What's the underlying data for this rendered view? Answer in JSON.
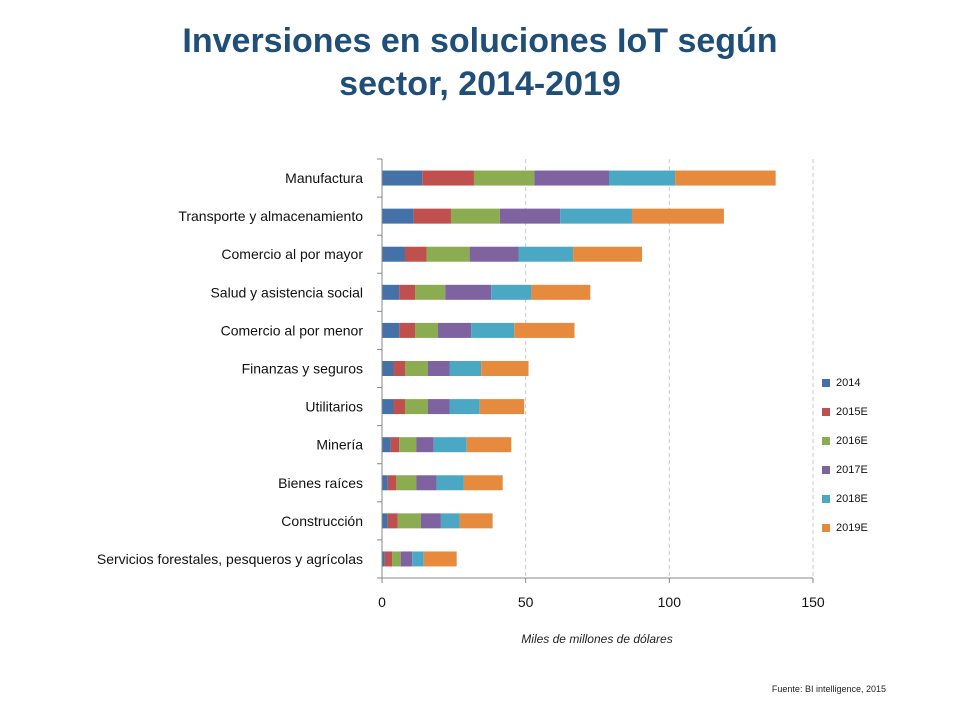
{
  "title_lines": [
    "Inversiones en soluciones IoT según",
    "sector, 2014-2019"
  ],
  "source": "Fuente: BI intelligence, 2015",
  "chart_data": {
    "type": "bar",
    "orientation": "horizontal",
    "stacked": true,
    "xlabel": "Miles de millones de dólares",
    "ylabel": "",
    "xlim": [
      0,
      150
    ],
    "xticks": [
      0,
      50,
      100,
      150
    ],
    "grid": "vertical-dashed",
    "legend_position": "right",
    "categories": [
      "Manufactura",
      "Transporte y almacenamiento",
      "Comercio al por mayor",
      "Salud y asistencia social",
      "Comercio al por menor",
      "Finanzas y seguros",
      "Utilitarios",
      "Minería",
      "Bienes raíces",
      "Construcción",
      "Servicios forestales, pesqueros y agrícolas"
    ],
    "series": [
      {
        "name": "2014",
        "color": "#4472a8",
        "values": [
          14,
          11,
          8,
          6,
          6,
          4,
          4,
          3,
          2,
          2,
          1
        ]
      },
      {
        "name": "2015E",
        "color": "#c0504d",
        "values": [
          18,
          13,
          7.5,
          5.5,
          5.5,
          4,
          4,
          3,
          3,
          3.5,
          2.5
        ]
      },
      {
        "name": "2016E",
        "color": "#8cac52",
        "values": [
          21,
          17,
          15,
          10.5,
          8,
          8,
          8,
          6,
          7,
          8,
          3
        ]
      },
      {
        "name": "2017E",
        "color": "#7f62a0",
        "values": [
          26,
          21,
          17,
          16,
          11.5,
          7.5,
          7.5,
          6,
          7,
          7,
          4
        ]
      },
      {
        "name": "2018E",
        "color": "#4ba8c5",
        "values": [
          23,
          25,
          19,
          14,
          15,
          11,
          10.5,
          11.5,
          9.5,
          6.5,
          4
        ]
      },
      {
        "name": "2019E",
        "color": "#e68a3e",
        "values": [
          35,
          32,
          24,
          20.5,
          21,
          16.5,
          15.5,
          15.5,
          13.5,
          11.5,
          11.5
        ]
      }
    ]
  }
}
